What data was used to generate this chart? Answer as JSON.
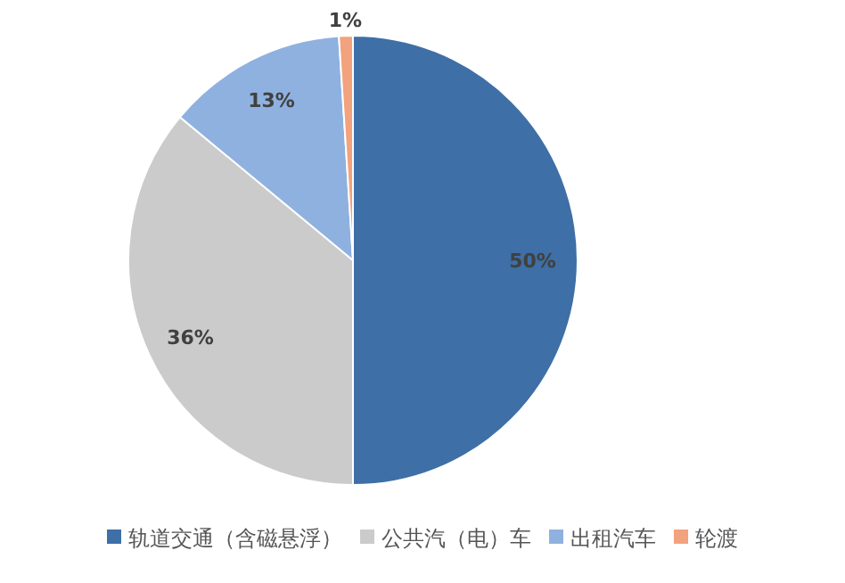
{
  "chart_data": {
    "type": "pie",
    "categories": [
      "轨道交通（含磁悬浮）",
      "公共汽（电）车",
      "出租汽车",
      "轮渡"
    ],
    "values": [
      50,
      36,
      13,
      1
    ],
    "colors": [
      "#3e6fa6",
      "#cbcbcb",
      "#8fb1df",
      "#f2a27c"
    ],
    "value_labels": [
      "50%",
      "36%",
      "13%",
      "1%"
    ],
    "legend": "bottom"
  }
}
